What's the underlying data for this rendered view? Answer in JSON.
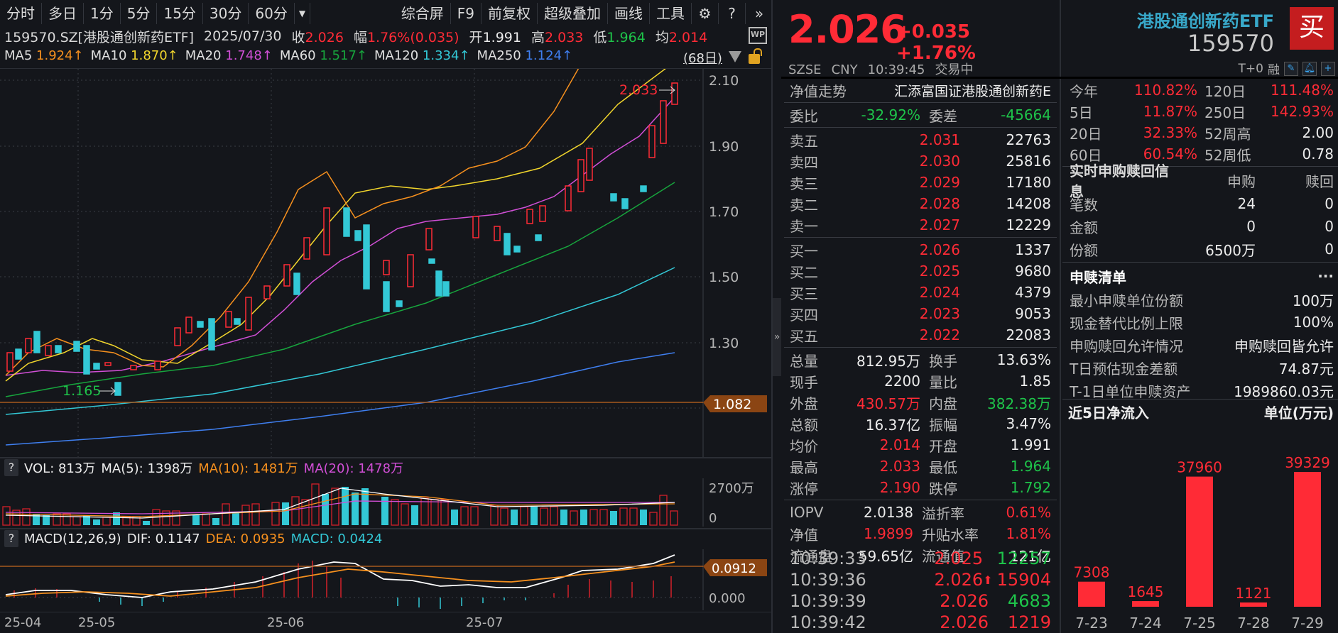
{
  "toolbar": {
    "left": [
      "分时",
      "多日",
      "1分",
      "5分",
      "15分",
      "30分",
      "60分"
    ],
    "dropdown_icon": "filter-down-icon",
    "right": [
      "综合屏",
      "F9",
      "前复权",
      "超级叠加",
      "画线",
      "工具"
    ],
    "icons": [
      "gear-icon",
      "help-icon",
      "double-chevron-right-icon"
    ]
  },
  "info": {
    "symbol": "159570.SZ[港股通创新药ETF]",
    "date": "2025/07/30",
    "close_label": "收",
    "close": "2.026",
    "range_label": "幅",
    "range": "1.76%(0.035)",
    "open_label": "开",
    "open": "1.991",
    "high_label": "高",
    "high": "2.033",
    "low_label": "低",
    "low": "1.964",
    "avg_label": "均",
    "avg": "2.014",
    "wp_label": "WP"
  },
  "ma": {
    "items": [
      {
        "label": "MA5",
        "value": "1.924↑",
        "color": "#f6901e"
      },
      {
        "label": "MA10",
        "value": "1.870↑",
        "color": "#f2d62c"
      },
      {
        "label": "MA20",
        "value": "1.748↑",
        "color": "#d14fd6"
      },
      {
        "label": "MA60",
        "value": "1.517↑",
        "color": "#17a53d"
      },
      {
        "label": "MA120",
        "value": "1.334↑",
        "color": "#33c8d6"
      },
      {
        "label": "MA250",
        "value": "1.124↑",
        "color": "#3f7ff0"
      }
    ],
    "days": "(68日)"
  },
  "price_axis": {
    "ticks": [
      "2.10",
      "1.90",
      "1.70",
      "1.50",
      "1.30"
    ],
    "high_marker": "2.033",
    "low_marker": "1.165",
    "cursor_price": "1.082"
  },
  "volume": {
    "help": "?",
    "vol_label": "VOL: 813万",
    "ma5": "MA(5): 1398万",
    "ma10": "MA(10): 1481万",
    "ma20": "MA(20): 1478万",
    "axis_top": "2700万",
    "axis_zero": "0"
  },
  "macd": {
    "help": "?",
    "title": "MACD(12,26,9)",
    "dif": "DIF: 0.1147",
    "dea": "DEA: 0.0935",
    "macd": "MACD: 0.0424",
    "cursor_value": "0.0912",
    "axis_zero": "0.000"
  },
  "xaxis": [
    "25-04",
    "25-05",
    "25-06",
    "25-07"
  ],
  "quote": {
    "price": "2.026",
    "change": "+0.035",
    "change_pct": "+1.76%",
    "exchange": "SZSE",
    "currency": "CNY",
    "time": "10:39:45",
    "status": "交易中",
    "name": "港股通创新药ETF",
    "code": "159570",
    "buy_label": "买",
    "flags": [
      "T+0",
      "融"
    ]
  },
  "nav_trend": {
    "label": "净值走势",
    "fund": "汇添富国证港股通创新药E"
  },
  "order_ratio": {
    "label1": "委比",
    "value1": "-32.92%",
    "label2": "委差",
    "value2": "-45664"
  },
  "asks": [
    {
      "label": "卖五",
      "price": "2.031",
      "vol": "22763"
    },
    {
      "label": "卖四",
      "price": "2.030",
      "vol": "25816"
    },
    {
      "label": "卖三",
      "price": "2.029",
      "vol": "17180"
    },
    {
      "label": "卖二",
      "price": "2.028",
      "vol": "14208"
    },
    {
      "label": "卖一",
      "price": "2.027",
      "vol": "12229"
    }
  ],
  "bids": [
    {
      "label": "买一",
      "price": "2.026",
      "vol": "1337"
    },
    {
      "label": "买二",
      "price": "2.025",
      "vol": "9680"
    },
    {
      "label": "买三",
      "price": "2.024",
      "vol": "4379"
    },
    {
      "label": "买四",
      "price": "2.023",
      "vol": "9053"
    },
    {
      "label": "买五",
      "price": "2.022",
      "vol": "22083"
    }
  ],
  "stats": [
    {
      "k1": "总量",
      "v1": "812.95万",
      "c1": "white",
      "k2": "换手",
      "v2": "13.63%",
      "c2": "white"
    },
    {
      "k1": "现手",
      "v1": "2200",
      "c1": "white",
      "k2": "量比",
      "v2": "1.85",
      "c2": "white"
    },
    {
      "k1": "外盘",
      "v1": "430.57万",
      "c1": "red",
      "k2": "内盘",
      "v2": "382.38万",
      "c2": "green"
    },
    {
      "k1": "总额",
      "v1": "16.37亿",
      "c1": "white",
      "k2": "振幅",
      "v2": "3.47%",
      "c2": "white"
    },
    {
      "k1": "均价",
      "v1": "2.014",
      "c1": "red",
      "k2": "开盘",
      "v2": "1.991",
      "c2": "white"
    },
    {
      "k1": "最高",
      "v1": "2.033",
      "c1": "red",
      "k2": "最低",
      "v2": "1.964",
      "c2": "green"
    },
    {
      "k1": "涨停",
      "v1": "2.190",
      "c1": "red",
      "k2": "跌停",
      "v2": "1.792",
      "c2": "green"
    }
  ],
  "etf_stats": [
    {
      "k1": "IOPV",
      "v1": "2.0138",
      "c1": "white",
      "k2": "溢折率",
      "v2": "0.61%",
      "c2": "red"
    },
    {
      "k1": "净值",
      "v1": "1.9899",
      "c1": "red",
      "k2": "升贴水率",
      "v2": "1.81%",
      "c2": "red"
    },
    {
      "k1": "流通盘",
      "v1": "59.65亿",
      "c1": "white",
      "k2": "流通值",
      "v2": "121亿",
      "c2": "white"
    }
  ],
  "ticks": [
    {
      "time": "10:39:33",
      "price": "2.025",
      "arrow": "",
      "vol": "12257",
      "vc": "green"
    },
    {
      "time": "10:39:36",
      "price": "2.026",
      "arrow": "⬆",
      "vol": "15904",
      "vc": "red"
    },
    {
      "time": "10:39:39",
      "price": "2.026",
      "arrow": "",
      "vol": "4683",
      "vc": "green"
    },
    {
      "time": "10:39:42",
      "price": "2.026",
      "arrow": "",
      "vol": "1219",
      "vc": "red"
    }
  ],
  "returns": [
    {
      "k1": "今年",
      "v1": "110.82%",
      "c1": "red",
      "k2": "120日",
      "v2": "111.48%",
      "c2": "red"
    },
    {
      "k1": "5日",
      "v1": "11.87%",
      "c1": "red",
      "k2": "250日",
      "v2": "142.93%",
      "c2": "red"
    },
    {
      "k1": "20日",
      "v1": "32.33%",
      "c1": "red",
      "k2": "52周高",
      "v2": "2.00",
      "c2": "white"
    },
    {
      "k1": "60日",
      "v1": "60.54%",
      "c1": "red",
      "k2": "52周低",
      "v2": "0.78",
      "c2": "white"
    }
  ],
  "subscription": {
    "title": "实时申购赎回信息",
    "col1": "申购",
    "col2": "赎回",
    "rows": [
      {
        "label": "笔数",
        "sub": "24",
        "red": "0"
      },
      {
        "label": "金额",
        "sub": "0",
        "red": "0"
      },
      {
        "label": "份额",
        "sub": "6500万",
        "red": "0"
      }
    ]
  },
  "creation_list": {
    "title": "申赎清单",
    "more": "···",
    "rows": [
      {
        "label": "最小申赎单位份额",
        "value": "100万"
      },
      {
        "label": "现金替代比例上限",
        "value": "100%"
      },
      {
        "label": "申购赎回允许情况",
        "value": "申购赎回皆允许"
      },
      {
        "label": "T日预估现金差额",
        "value": "74.87元"
      },
      {
        "label": "T-1日单位申赎资产",
        "value": "1989860.03元"
      }
    ]
  },
  "net_inflow": {
    "title": "近5日净流入",
    "unit": "单位(万元)"
  },
  "chart_data": {
    "type": "bar",
    "title": "近5日净流入",
    "ylabel": "单位(万元)",
    "categories": [
      "7-23",
      "7-24",
      "7-25",
      "7-28",
      "7-29"
    ],
    "values": [
      7308,
      1645,
      37960,
      1121,
      39329
    ],
    "color": "#ff2b36"
  }
}
